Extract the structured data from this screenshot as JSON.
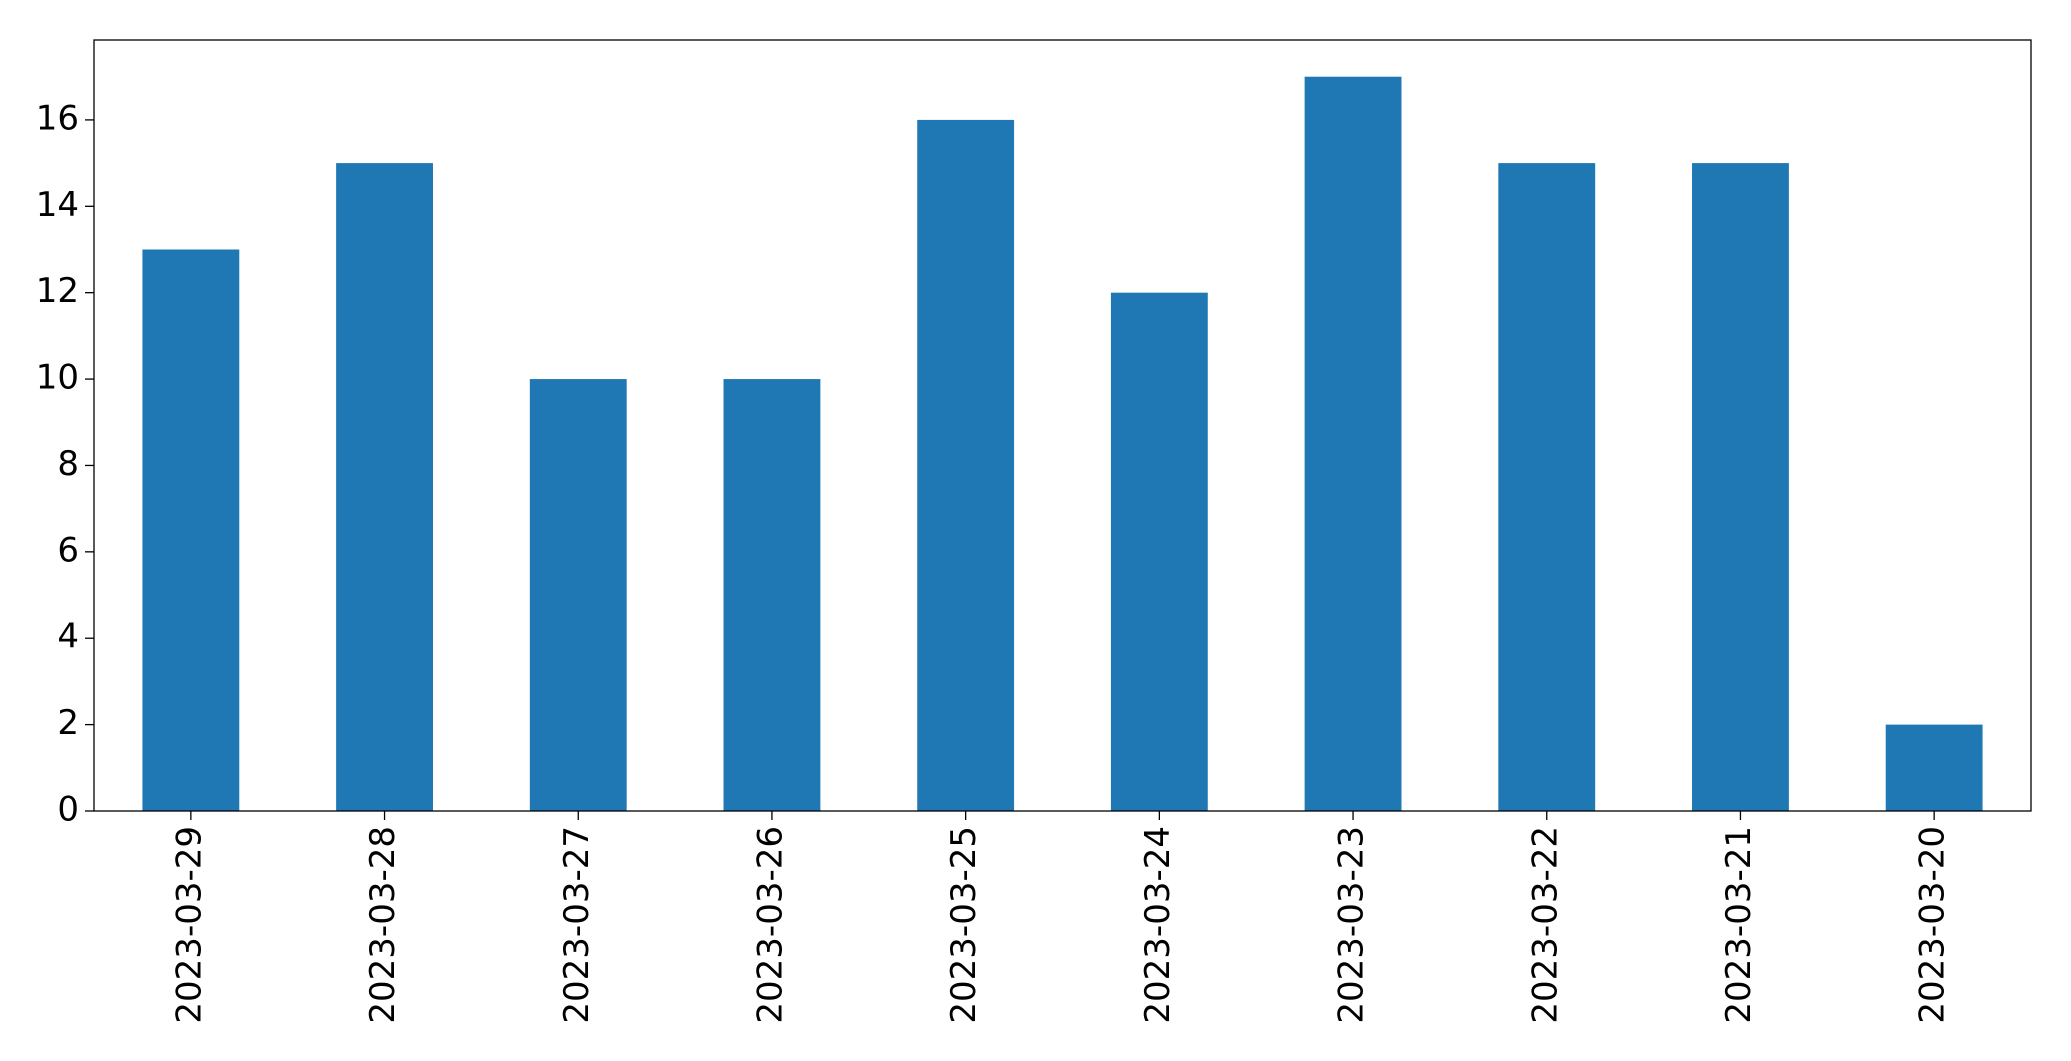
{
  "chart_data": {
    "type": "bar",
    "categories": [
      "2023-03-29",
      "2023-03-28",
      "2023-03-27",
      "2023-03-26",
      "2023-03-25",
      "2023-03-24",
      "2023-03-23",
      "2023-03-22",
      "2023-03-21",
      "2023-03-20"
    ],
    "values": [
      13,
      15,
      10,
      10,
      16,
      12,
      17,
      15,
      15,
      2
    ],
    "color": "#1f77b4",
    "ylim": [
      0,
      17.85
    ],
    "yticks": [
      0,
      2,
      4,
      6,
      8,
      10,
      12,
      14,
      16
    ],
    "grid": false
  }
}
